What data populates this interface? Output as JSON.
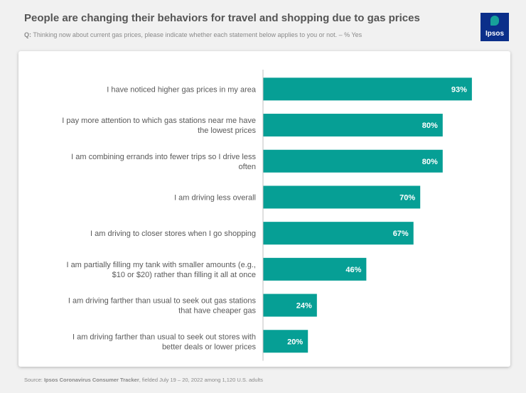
{
  "header": {
    "title": "People are changing their behaviors for travel and shopping due to gas prices",
    "question_prefix": "Q:",
    "question_text": "Thinking now about current gas prices, please indicate whether each statement below applies to you or not. – % Yes"
  },
  "logo": {
    "text": "Ipsos"
  },
  "footer": {
    "source_prefix": "Source: ",
    "source_name": "Ipsos Coronavirus Consumer Tracker",
    "source_rest": ", fielded July 19 – 20, 2022 among 1,120 U.S. adults"
  },
  "colors": {
    "bar": "#069f95",
    "label_text": "#595959",
    "axis": "#bfbfbf"
  },
  "chart_data": {
    "type": "bar",
    "orientation": "horizontal",
    "categories": [
      [
        "I have noticed higher gas prices in my area"
      ],
      [
        "I pay more attention to which gas stations near me have",
        "the lowest prices"
      ],
      [
        "I am combining errands into fewer trips so I drive less",
        "often"
      ],
      [
        "I am driving less overall"
      ],
      [
        "I am driving to closer stores when I go shopping"
      ],
      [
        "I am partially filling my tank with smaller amounts (e.g.,",
        "$10 or $20) rather than filling it all at once"
      ],
      [
        "I am driving farther than usual to seek out gas stations",
        "that have cheaper gas"
      ],
      [
        "I am driving farther than usual to seek out stores with",
        "better deals or lower prices"
      ]
    ],
    "values": [
      93,
      80,
      80,
      70,
      67,
      46,
      24,
      20
    ],
    "value_labels": [
      "93%",
      "80%",
      "80%",
      "70%",
      "67%",
      "46%",
      "24%",
      "20%"
    ],
    "xlim": [
      0,
      100
    ],
    "grid": false,
    "legend": "none"
  }
}
